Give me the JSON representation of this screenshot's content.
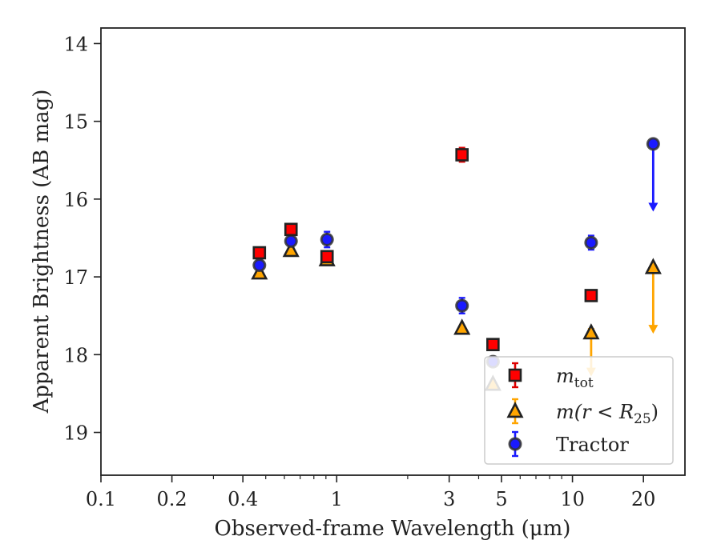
{
  "chart_data": {
    "type": "scatter",
    "title": "",
    "xlabel": "Observed-frame Wavelength (μm)",
    "ylabel": "Apparent Brightness (AB mag)",
    "xscale": "log",
    "xlim": [
      0.1,
      30
    ],
    "ylim": [
      19.55,
      13.8
    ],
    "y_inverted": true,
    "x_ticks": [
      {
        "value": 0.1,
        "label": "0.1"
      },
      {
        "value": 0.2,
        "label": "0.2"
      },
      {
        "value": 0.4,
        "label": "0.4"
      },
      {
        "value": 1,
        "label": "1"
      },
      {
        "value": 3,
        "label": "3"
      },
      {
        "value": 5,
        "label": "5"
      },
      {
        "value": 10,
        "label": "10"
      },
      {
        "value": 20,
        "label": "20"
      }
    ],
    "y_ticks": [
      {
        "value": 14,
        "label": "14"
      },
      {
        "value": 15,
        "label": "15"
      },
      {
        "value": 16,
        "label": "16"
      },
      {
        "value": 17,
        "label": "17"
      },
      {
        "value": 18,
        "label": "18"
      },
      {
        "value": 19,
        "label": "19"
      }
    ],
    "legend_position": "lower-right",
    "series": [
      {
        "name": "m_tot",
        "legend_label": {
          "base": "m",
          "sub": "tot"
        },
        "marker": "square",
        "color": "#ff0000",
        "errcolor": "#dd0000",
        "points": [
          {
            "x": 0.47,
            "y": 16.69,
            "err": 0.05
          },
          {
            "x": 0.64,
            "y": 16.39,
            "err": 0.05
          },
          {
            "x": 0.91,
            "y": 16.74,
            "err": 0.05
          },
          {
            "x": 3.4,
            "y": 15.43,
            "err": 0.09
          },
          {
            "x": 4.6,
            "y": 17.87,
            "err": 0.07
          },
          {
            "x": 12.0,
            "y": 17.24,
            "err": 0.05
          }
        ]
      },
      {
        "name": "m(r < R25)",
        "legend_label": {
          "base": "m(r < R",
          "sub": "25",
          "suffix": ")"
        },
        "marker": "triangle",
        "color": "#ffa500",
        "errcolor": "#ffa500",
        "points": [
          {
            "x": 0.47,
            "y": 16.95,
            "err": 0.03
          },
          {
            "x": 0.64,
            "y": 16.66,
            "err": 0.03
          },
          {
            "x": 0.91,
            "y": 16.78,
            "err": 0.03
          },
          {
            "x": 3.4,
            "y": 17.66,
            "err": 0.03
          },
          {
            "x": 4.6,
            "y": 18.38,
            "err": 0.03
          },
          {
            "x": 12.0,
            "y": 17.72,
            "err": 0.05,
            "upper_limit_to": 18.25
          },
          {
            "x": 22.0,
            "y": 16.88,
            "err": 0.03,
            "upper_limit_to": 17.7
          }
        ]
      },
      {
        "name": "Tractor",
        "legend_label": {
          "base": "Tractor"
        },
        "marker": "circle",
        "color": "#1a1aff",
        "errcolor": "#1a1aff",
        "points": [
          {
            "x": 0.47,
            "y": 16.85,
            "err": 0.06
          },
          {
            "x": 0.64,
            "y": 16.54,
            "err": 0.06
          },
          {
            "x": 0.91,
            "y": 16.52,
            "err": 0.1
          },
          {
            "x": 3.4,
            "y": 17.37,
            "err": 0.1
          },
          {
            "x": 4.6,
            "y": 18.09,
            "err": 0.06
          },
          {
            "x": 12.0,
            "y": 16.56,
            "err": 0.09
          },
          {
            "x": 22.0,
            "y": 15.29,
            "err": 0.03,
            "upper_limit_to": 16.13
          }
        ]
      }
    ]
  }
}
